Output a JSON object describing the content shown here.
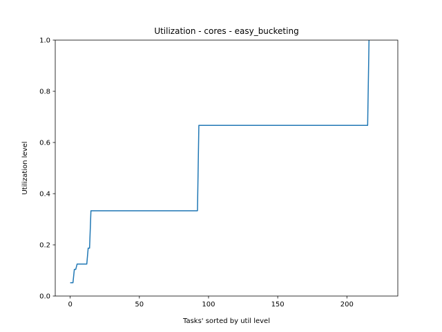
{
  "chart_data": {
    "type": "line",
    "title": "Utilization - cores - easy_bucketing",
    "xlabel": "Tasks' sorted by util level",
    "ylabel": "Utilization level",
    "xlim": [
      -10.8,
      236.8
    ],
    "ylim": [
      0.0,
      1.0
    ],
    "xticks": [
      0,
      50,
      100,
      150,
      200
    ],
    "yticks": [
      0.0,
      0.2,
      0.4,
      0.6,
      0.8,
      1.0
    ],
    "xtick_labels": [
      "0",
      "50",
      "100",
      "150",
      "200"
    ],
    "ytick_labels": [
      "0.0",
      "0.2",
      "0.4",
      "0.6",
      "0.8",
      "1.0"
    ],
    "grid": false,
    "line_color": "#1f77b4",
    "series": [
      {
        "x": [
          0,
          2,
          3,
          4,
          5,
          6,
          12,
          13,
          14,
          15,
          16,
          92,
          93,
          215,
          216
        ],
        "y": [
          0.052,
          0.052,
          0.104,
          0.104,
          0.125,
          0.125,
          0.125,
          0.187,
          0.187,
          0.333,
          0.333,
          0.333,
          0.667,
          0.667,
          1.0
        ]
      }
    ]
  }
}
